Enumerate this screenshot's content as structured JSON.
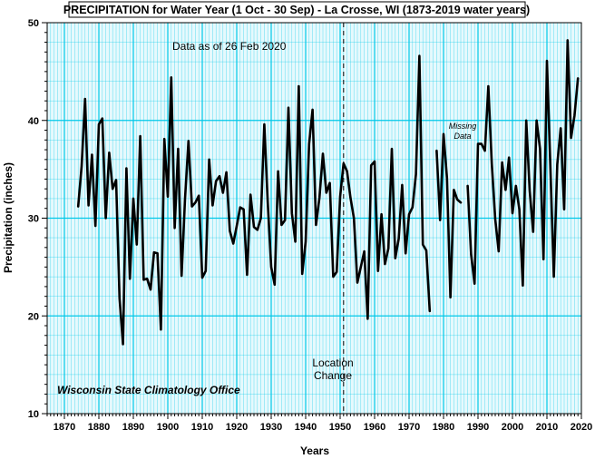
{
  "chart_data": {
    "type": "line",
    "title": "PRECIPITATION for Water Year (1 Oct - 30 Sep) - La Crosse, WI (1873-2019 water years)",
    "xlabel": "Years",
    "ylabel": "Precipitation (inches)",
    "xlim": [
      1865,
      2020
    ],
    "ylim": [
      10,
      50
    ],
    "xticks": [
      "1870",
      "1880",
      "1890",
      "1900",
      "1910",
      "1920",
      "1930",
      "1940",
      "1950",
      "1960",
      "1970",
      "1980",
      "1990",
      "2000",
      "2010",
      "2020"
    ],
    "yticks": [
      "10",
      "20",
      "30",
      "40",
      "50"
    ],
    "grid": true,
    "line_color": "#000000",
    "grid_color": "#00c8e8",
    "plot_background": "#e6f9fd",
    "annotations": {
      "data_as_of": "Data as of 26 Feb 2020",
      "location_change": [
        "Location",
        "Change"
      ],
      "location_change_year": 1951,
      "missing_data": [
        "Missing",
        "Data"
      ],
      "credit": "Wisconsin State Climatology Office"
    },
    "series": [
      {
        "x": [
          1874,
          1875,
          1876,
          1877,
          1878,
          1879,
          1880,
          1881,
          1882,
          1883,
          1884,
          1885,
          1886,
          1887,
          1888,
          1889,
          1890,
          1891,
          1892,
          1893,
          1894,
          1895,
          1896,
          1897,
          1898,
          1899,
          1900,
          1901,
          1902,
          1903,
          1904,
          1905,
          1906,
          1907,
          1908,
          1909,
          1910,
          1911,
          1912,
          1913,
          1914,
          1915,
          1916,
          1917,
          1918,
          1919,
          1920,
          1921,
          1922,
          1923,
          1924,
          1925,
          1926,
          1927,
          1928,
          1929,
          1930,
          1931,
          1932,
          1933,
          1934,
          1935,
          1936,
          1937,
          1938,
          1939,
          1940,
          1941,
          1942,
          1943,
          1944,
          1945,
          1946,
          1947,
          1948,
          1949,
          1950,
          1951,
          1952,
          1953,
          1954,
          1955,
          1956,
          1957,
          1958,
          1959,
          1960,
          1961,
          1962,
          1963,
          1964,
          1965,
          1966,
          1967,
          1968,
          1969,
          1970,
          1971,
          1972,
          1973,
          1974,
          1975,
          1976,
          null,
          1978,
          1979,
          1980,
          1981,
          1982,
          1983,
          1984,
          1985,
          null,
          1987,
          1988,
          1989,
          1990,
          1991,
          1992,
          1993,
          1994,
          1995,
          1996,
          1997,
          1998,
          1999,
          2000,
          2001,
          2002,
          2003,
          2004,
          2005,
          2006,
          2007,
          2008,
          2009,
          2010,
          2011,
          2012,
          2013,
          2014,
          2015,
          2016,
          2017,
          2018,
          2019
        ],
        "values": [
          31.2,
          35.3,
          42.2,
          31.3,
          36.5,
          29.2,
          39.6,
          40.2,
          30.0,
          36.7,
          33.0,
          33.9,
          21.8,
          17.1,
          35.1,
          23.8,
          32.0,
          27.3,
          38.4,
          23.7,
          23.8,
          22.7,
          26.5,
          26.4,
          18.6,
          38.1,
          32.2,
          44.4,
          29.0,
          37.1,
          24.1,
          32.0,
          37.9,
          31.2,
          31.6,
          32.3,
          23.9,
          24.6,
          36.0,
          31.3,
          33.8,
          34.3,
          32.6,
          34.7,
          28.7,
          27.4,
          29.2,
          31.1,
          30.9,
          24.2,
          32.4,
          29.1,
          28.8,
          30.0,
          39.6,
          31.6,
          25.0,
          23.2,
          34.8,
          29.3,
          29.8,
          41.3,
          30.5,
          27.6,
          43.5,
          24.3,
          27.6,
          37.6,
          41.1,
          29.3,
          32.1,
          36.6,
          32.6,
          33.6,
          24.0,
          24.5,
          32.2,
          35.6,
          34.8,
          32.1,
          30.0,
          23.4,
          25.0,
          26.6,
          19.7,
          35.4,
          35.8,
          24.6,
          30.4,
          25.3,
          26.9,
          37.1,
          25.9,
          27.9,
          33.4,
          26.4,
          30.4,
          31.1,
          34.5,
          46.6,
          27.3,
          26.7,
          20.5,
          null,
          36.9,
          29.8,
          38.6,
          34.1,
          21.9,
          32.9,
          31.9,
          31.6,
          null,
          33.3,
          26.3,
          23.3,
          37.6,
          37.6,
          36.9,
          43.5,
          35.6,
          29.9,
          26.6,
          35.7,
          32.9,
          36.2,
          30.5,
          33.3,
          30.9,
          23.1,
          40.0,
          32.8,
          28.6,
          40.0,
          37.1,
          25.8,
          46.1,
          35.3,
          24.0,
          35.5,
          39.2,
          30.9,
          48.2,
          38.2,
          40.5,
          44.3
        ]
      }
    ]
  }
}
